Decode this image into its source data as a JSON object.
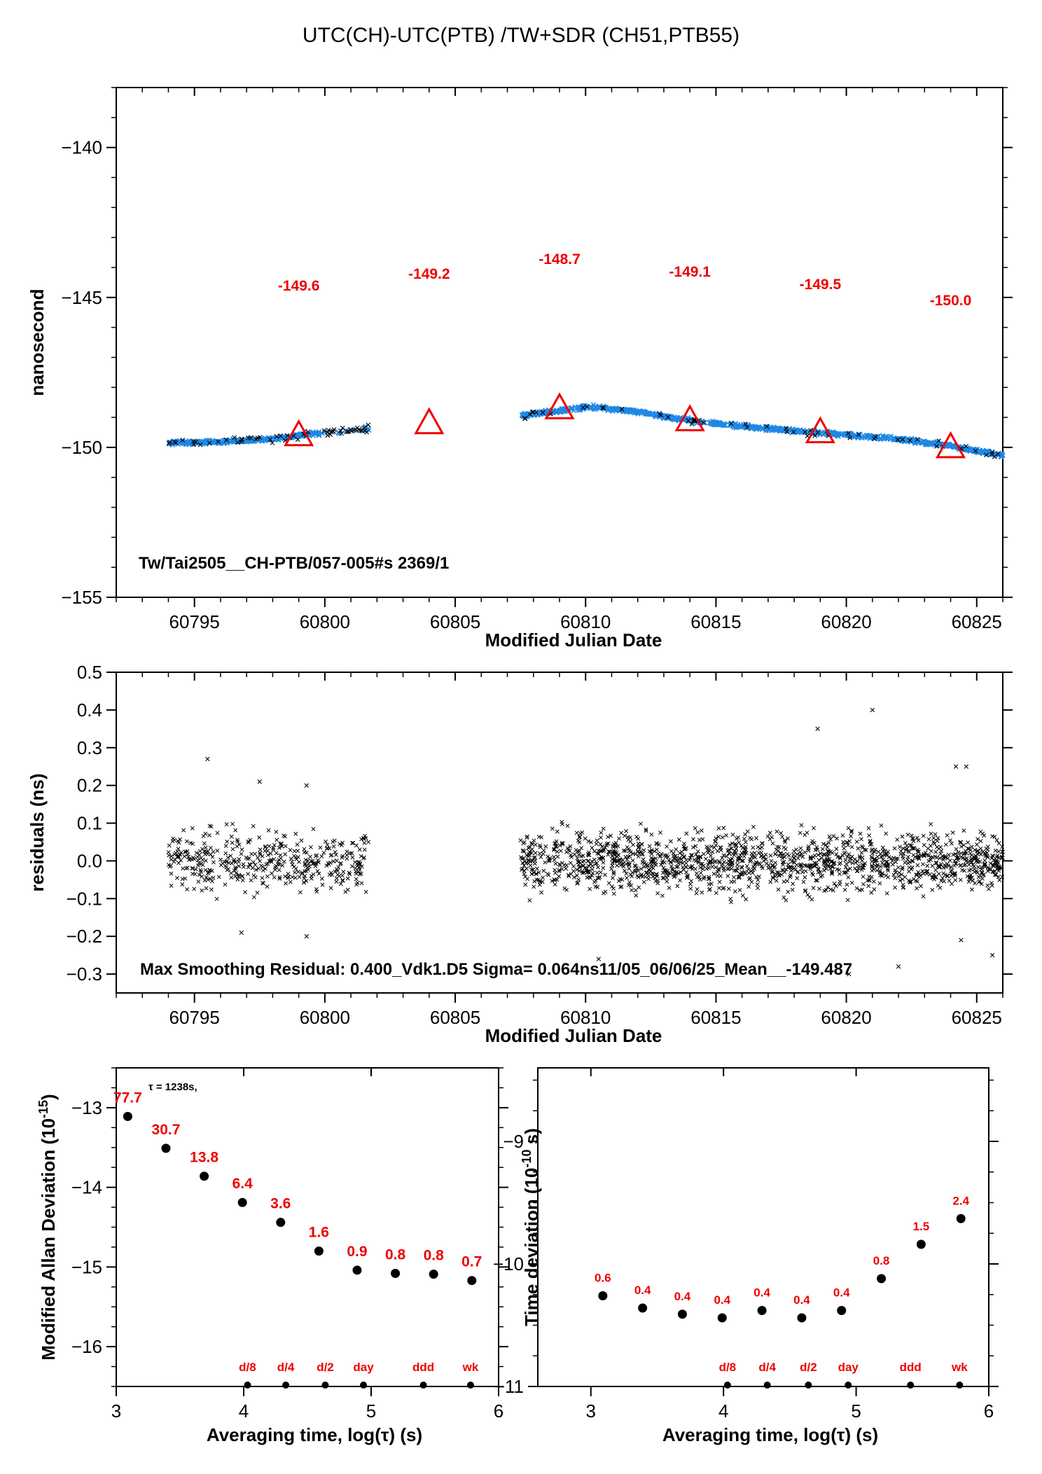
{
  "title": "UTC(CH)-UTC(PTB)  /TW+SDR  (CH51,PTB55)",
  "colors": {
    "data_points": "#1e88e5",
    "triangles": "#ee0000",
    "labels": "#ee0000",
    "residuals": "#000000"
  },
  "chart_data": [
    {
      "id": "offset",
      "type": "scatter",
      "xlabel": "Modified Julian Date",
      "ylabel": "nanosecond",
      "xlim": [
        60792,
        60826
      ],
      "ylim": [
        -155,
        -138
      ],
      "xticks": [
        60795,
        60800,
        60805,
        60810,
        60815,
        60820,
        60825
      ],
      "yticks": [
        -140,
        -145,
        -150,
        -155
      ],
      "annotation": "Tw/Tai2505__CH-PTB/057-005#s  2369/1",
      "segments": [
        {
          "x_start": 60794.0,
          "x_end": 60801.7,
          "trend": [
            [
              60794.0,
              -149.85
            ],
            [
              60796.0,
              -149.82
            ],
            [
              60798.0,
              -149.72
            ],
            [
              60799.0,
              -149.6
            ],
            [
              60801.7,
              -149.38
            ]
          ]
        },
        {
          "x_start": 60807.5,
          "x_end": 60826.0,
          "trend": [
            [
              60807.5,
              -148.95
            ],
            [
              60809.0,
              -148.78
            ],
            [
              60810.0,
              -148.65
            ],
            [
              60811.5,
              -148.75
            ],
            [
              60814.0,
              -149.1
            ],
            [
              60816.0,
              -149.3
            ],
            [
              60819.0,
              -149.52
            ],
            [
              60822.0,
              -149.72
            ],
            [
              60824.0,
              -149.95
            ],
            [
              60826.0,
              -150.28
            ]
          ]
        }
      ],
      "points_count": 2369,
      "daily_means": [
        {
          "x": 60799,
          "y": -149.6,
          "label": "-149.6"
        },
        {
          "x": 60804,
          "y": -149.2,
          "label": "-149.2"
        },
        {
          "x": 60809,
          "y": -148.7,
          "label": "-148.7"
        },
        {
          "x": 60814,
          "y": -149.1,
          "label": "-149.1"
        },
        {
          "x": 60819,
          "y": -149.5,
          "label": "-149.5"
        },
        {
          "x": 60824,
          "y": -150.0,
          "label": "-150.0"
        }
      ]
    },
    {
      "id": "residuals",
      "type": "scatter",
      "xlabel": "Modified Julian Date",
      "ylabel": "residuals (ns)",
      "xlim": [
        60792,
        60826
      ],
      "ylim": [
        -0.35,
        0.5
      ],
      "xticks": [
        60795,
        60800,
        60805,
        60810,
        60815,
        60820,
        60825
      ],
      "yticks": [
        0.5,
        0.4,
        0.3,
        0.2,
        0.1,
        0.0,
        -0.1,
        -0.2,
        -0.3
      ],
      "ytick_labels": [
        "0.5",
        "0.4",
        "0.3",
        "0.2",
        "0.1",
        "0.0",
        "-0.1",
        "-0.2",
        "-0.3"
      ],
      "annotation": "Max Smoothing Residual: 0.400_Vdk1.D5  Sigma= 0.064ns11/05_06/06/25_Mean__-149.487",
      "sigma": 0.064,
      "outliers": [
        [
          60795.5,
          0.27
        ],
        [
          60797.5,
          0.21
        ],
        [
          60799.3,
          0.2
        ],
        [
          60796.8,
          -0.19
        ],
        [
          60799.3,
          -0.2
        ],
        [
          60810.5,
          -0.26
        ],
        [
          60818.9,
          0.35
        ],
        [
          60821.0,
          0.4
        ],
        [
          60820.1,
          -0.3
        ],
        [
          60822.0,
          -0.28
        ],
        [
          60824.2,
          0.25
        ],
        [
          60824.6,
          0.25
        ],
        [
          60825.6,
          -0.25
        ],
        [
          60824.4,
          -0.21
        ]
      ]
    },
    {
      "id": "mdev",
      "type": "scatter",
      "xlabel": "Averaging time, log(τ) (s)",
      "ylabel": "Modified Allan Deviation (10^-15)",
      "xlim": [
        3,
        6
      ],
      "ylim": [
        -16.5,
        -12.5
      ],
      "xticks": [
        3,
        4,
        5,
        6
      ],
      "yticks": [
        -13,
        -14,
        -15,
        -16
      ],
      "note": "τ = 1238s,",
      "points": [
        {
          "x": 3.09,
          "y": -13.11,
          "label": "77.7"
        },
        {
          "x": 3.39,
          "y": -13.51,
          "label": "30.7"
        },
        {
          "x": 3.69,
          "y": -13.86,
          "label": "13.8"
        },
        {
          "x": 3.99,
          "y": -14.19,
          "label": "6.4"
        },
        {
          "x": 4.29,
          "y": -14.44,
          "label": "3.6"
        },
        {
          "x": 4.59,
          "y": -14.8,
          "label": "1.6"
        },
        {
          "x": 4.89,
          "y": -15.04,
          "label": "0.9"
        },
        {
          "x": 5.19,
          "y": -15.08,
          "label": "0.8"
        },
        {
          "x": 5.49,
          "y": -15.09,
          "label": "0.8"
        },
        {
          "x": 5.79,
          "y": -15.17,
          "label": "0.7"
        }
      ],
      "period_markers": [
        {
          "x": 4.03,
          "label": "d/8"
        },
        {
          "x": 4.33,
          "label": "d/4"
        },
        {
          "x": 4.64,
          "label": "d/2"
        },
        {
          "x": 4.94,
          "label": "day"
        },
        {
          "x": 5.41,
          "label": "ddd"
        },
        {
          "x": 5.78,
          "label": "wk"
        }
      ]
    },
    {
      "id": "tdev",
      "type": "scatter",
      "xlabel": "Averaging time, log(τ) (s)",
      "ylabel": "Time deviation (10^-10 s)",
      "xlim": [
        2.6,
        6
      ],
      "ylim": [
        -11,
        -8.4
      ],
      "xticks": [
        3,
        4,
        5,
        6
      ],
      "yticks": [
        -9,
        -10,
        -11
      ],
      "points": [
        {
          "x": 3.09,
          "y": -10.26,
          "label": "0.6"
        },
        {
          "x": 3.39,
          "y": -10.36,
          "label": "0.4"
        },
        {
          "x": 3.69,
          "y": -10.41,
          "label": "0.4"
        },
        {
          "x": 3.99,
          "y": -10.44,
          "label": "0.4"
        },
        {
          "x": 4.29,
          "y": -10.38,
          "label": "0.4"
        },
        {
          "x": 4.59,
          "y": -10.44,
          "label": "0.4"
        },
        {
          "x": 4.89,
          "y": -10.38,
          "label": "0.4"
        },
        {
          "x": 5.19,
          "y": -10.12,
          "label": "0.8"
        },
        {
          "x": 5.49,
          "y": -9.84,
          "label": "1.5"
        },
        {
          "x": 5.79,
          "y": -9.63,
          "label": "2.4"
        }
      ],
      "period_markers": [
        {
          "x": 4.03,
          "label": "d/8"
        },
        {
          "x": 4.33,
          "label": "d/4"
        },
        {
          "x": 4.64,
          "label": "d/2"
        },
        {
          "x": 4.94,
          "label": "day"
        },
        {
          "x": 5.41,
          "label": "ddd"
        },
        {
          "x": 5.78,
          "label": "wk"
        }
      ]
    }
  ]
}
